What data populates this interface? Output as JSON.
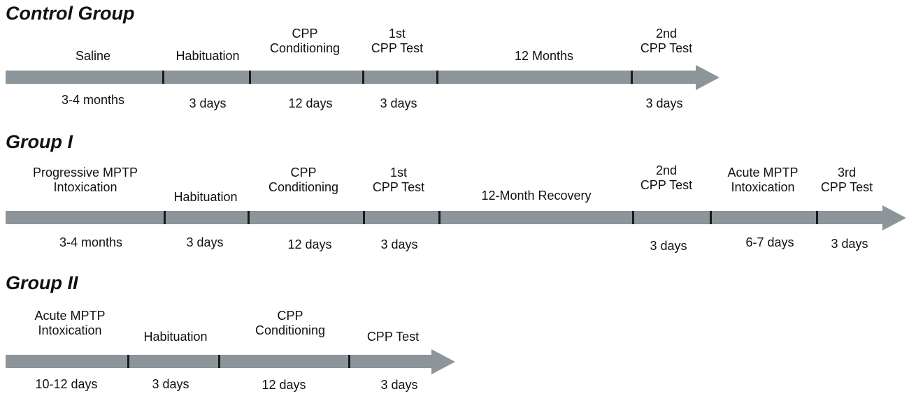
{
  "groups": [
    {
      "title": "Control Group",
      "phases": [
        {
          "label": [
            "Saline"
          ],
          "duration": "3-4 months"
        },
        {
          "label": [
            "Habituation"
          ],
          "duration": "3 days"
        },
        {
          "label": [
            "CPP",
            "Conditioning"
          ],
          "duration": "12 days"
        },
        {
          "label": [
            "1st",
            "CPP Test"
          ],
          "duration": "3 days"
        },
        {
          "label": [
            "12 Months"
          ],
          "duration": ""
        },
        {
          "label": [
            "2nd",
            "CPP Test"
          ],
          "duration": "3 days"
        }
      ]
    },
    {
      "title": "Group I",
      "phases": [
        {
          "label": [
            "Progressive MPTP",
            "Intoxication"
          ],
          "duration": "3-4 months"
        },
        {
          "label": [
            "Habituation"
          ],
          "duration": "3 days"
        },
        {
          "label": [
            "CPP",
            "Conditioning"
          ],
          "duration": "12 days"
        },
        {
          "label": [
            "1st",
            "CPP Test"
          ],
          "duration": "3 days"
        },
        {
          "label": [
            "12-Month Recovery"
          ],
          "duration": ""
        },
        {
          "label": [
            "2nd",
            "CPP Test"
          ],
          "duration": "3 days"
        },
        {
          "label": [
            "Acute MPTP",
            "Intoxication"
          ],
          "duration": "6-7 days"
        },
        {
          "label": [
            "3rd",
            "CPP Test"
          ],
          "duration": "3 days"
        }
      ]
    },
    {
      "title": "Group II",
      "phases": [
        {
          "label": [
            "Acute MPTP",
            "Intoxication"
          ],
          "duration": "10-12 days"
        },
        {
          "label": [
            "Habituation"
          ],
          "duration": "3 days"
        },
        {
          "label": [
            "CPP",
            "Conditioning"
          ],
          "duration": "12 days"
        },
        {
          "label": [
            "CPP Test"
          ],
          "duration": "3 days"
        }
      ]
    }
  ],
  "colors": {
    "arrow": "#8c9599",
    "tick": "#1a1a1a",
    "text": "#111111"
  }
}
